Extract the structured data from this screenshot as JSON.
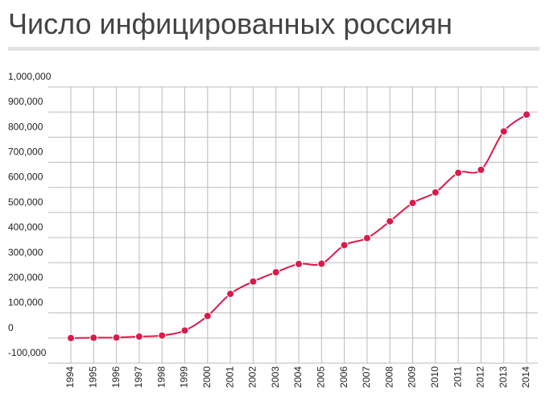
{
  "chart_data": {
    "type": "line",
    "title": "Число инфицированных россиян",
    "x": [
      1994,
      1995,
      1996,
      1997,
      1998,
      1999,
      2000,
      2001,
      2002,
      2003,
      2004,
      2005,
      2006,
      2007,
      2008,
      2009,
      2010,
      2011,
      2012,
      2013,
      2014
    ],
    "values": [
      0,
      1000,
      2000,
      6000,
      10000,
      30000,
      88000,
      176000,
      225000,
      262000,
      295000,
      296000,
      370000,
      398000,
      465000,
      538000,
      580000,
      658000,
      670000,
      823000,
      890000
    ],
    "color": "#d81b4b",
    "xlim": [
      1994,
      2014
    ],
    "xticks": [
      1994,
      1995,
      1996,
      1997,
      1998,
      1999,
      2000,
      2001,
      2002,
      2003,
      2004,
      2005,
      2006,
      2007,
      2008,
      2009,
      2010,
      2011,
      2012,
      2013,
      2014
    ],
    "ylim": [
      -100000,
      1000000
    ],
    "yticks": [
      {
        "value": -100000,
        "label": "-100,000"
      },
      0,
      {
        "value": 100000,
        "label": "100,000"
      },
      {
        "value": 200000,
        "label": "200,000"
      },
      {
        "value": 300000,
        "label": "300,000"
      },
      {
        "value": 400000,
        "label": "400,000"
      },
      {
        "value": 500000,
        "label": "500,000"
      },
      {
        "value": 600000,
        "label": "600,000"
      },
      {
        "value": 700000,
        "label": "700,000"
      },
      {
        "value": 800000,
        "label": "800,000"
      },
      {
        "value": 900000,
        "label": "900,000"
      },
      {
        "value": 1000000,
        "label": "1,000,000"
      }
    ],
    "grid": true
  }
}
